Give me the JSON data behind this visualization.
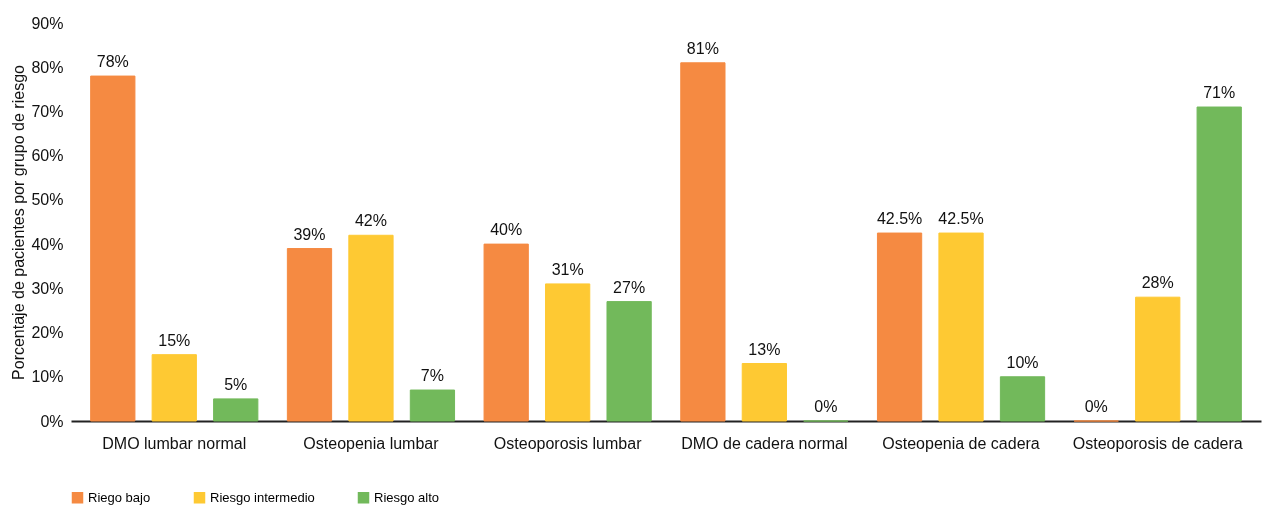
{
  "chart_data": {
    "type": "bar",
    "ylabel": "Porcentaje de pacientes por grupo de riesgo",
    "categories": [
      "DMO lumbar normal",
      "Osteopenia lumbar",
      "Osteoporosis lumbar",
      "DMO de cadera normal",
      "Osteopenia de cadera",
      "Osteoporosis de cadera"
    ],
    "series": [
      {
        "name": "Riego bajo",
        "color": "#f58a42",
        "values": [
          78,
          39,
          40,
          81,
          42.5,
          0
        ],
        "value_labels": [
          "78%",
          "39%",
          "40%",
          "81%",
          "42.5%",
          "0%"
        ]
      },
      {
        "name": "Riesgo intermedio",
        "color": "#fec933",
        "values": [
          15,
          42,
          31,
          13,
          42.5,
          28
        ],
        "value_labels": [
          "15%",
          "42%",
          "31%",
          "13%",
          "42.5%",
          "28%"
        ]
      },
      {
        "name": "Riesgo alto",
        "color": "#72b95b",
        "values": [
          5,
          7,
          27,
          0,
          10,
          71
        ],
        "value_labels": [
          "5%",
          "7%",
          "27%",
          "0%",
          "10%",
          "71%"
        ]
      }
    ],
    "ylim": [
      0,
      90
    ],
    "yticks": [
      {
        "value": 0,
        "label": "0%"
      },
      {
        "value": 10,
        "label": "10%"
      },
      {
        "value": 20,
        "label": "20%"
      },
      {
        "value": 30,
        "label": "30%"
      },
      {
        "value": 40,
        "label": "40%"
      },
      {
        "value": 50,
        "label": "50%"
      },
      {
        "value": 60,
        "label": "60%"
      },
      {
        "value": 70,
        "label": "70%"
      },
      {
        "value": 80,
        "label": "80%"
      },
      {
        "value": 90,
        "label": "90%"
      }
    ],
    "grid": false,
    "legend": "bottom"
  }
}
